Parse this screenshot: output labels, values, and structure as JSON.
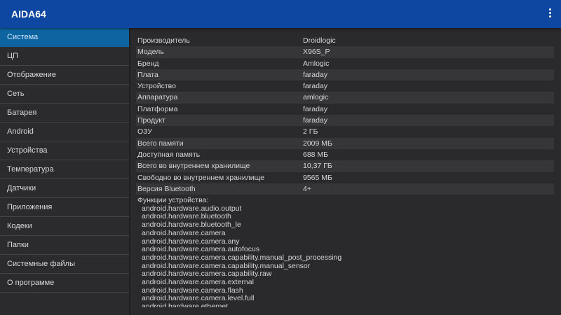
{
  "app": {
    "title": "AIDA64",
    "menu_icon": "more-vert-icon",
    "colors": {
      "appbar": "#0d47a1",
      "selected": "#0e64a0"
    }
  },
  "sidebar": {
    "items": [
      {
        "label": "Система",
        "selected": true
      },
      {
        "label": "ЦП"
      },
      {
        "label": "Отображение"
      },
      {
        "label": "Сеть"
      },
      {
        "label": "Батарея"
      },
      {
        "label": "Android"
      },
      {
        "label": "Устройства"
      },
      {
        "label": "Температура"
      },
      {
        "label": "Датчики"
      },
      {
        "label": "Приложения"
      },
      {
        "label": "Кодеки"
      },
      {
        "label": "Папки"
      },
      {
        "label": "Системные файлы"
      },
      {
        "label": "О программе"
      }
    ]
  },
  "main": {
    "rows": [
      {
        "k": "Производитель",
        "v": "Droidlogic"
      },
      {
        "k": "Модель",
        "v": "X96S_P"
      },
      {
        "k": "Бренд",
        "v": "Amlogic"
      },
      {
        "k": "Плата",
        "v": "faraday"
      },
      {
        "k": "Устройство",
        "v": "faraday"
      },
      {
        "k": "Аппаратура",
        "v": "amlogic"
      },
      {
        "k": "Платформа",
        "v": "faraday"
      },
      {
        "k": "Продукт",
        "v": "faraday"
      },
      {
        "k": "ОЗУ",
        "v": "2 ГБ"
      },
      {
        "k": "Всего памяти",
        "v": "2009 МБ"
      },
      {
        "k": "Доступная память",
        "v": "688 МБ"
      },
      {
        "k": "Всего во внутреннем хранилище",
        "v": "10,37 ГБ"
      },
      {
        "k": "Свободно во внутреннем хранилище",
        "v": "9565 МБ"
      },
      {
        "k": "Версия Bluetooth",
        "v": "4+"
      }
    ],
    "features_label": "Функции устройства:",
    "features": [
      "android.hardware.audio.output",
      "android.hardware.bluetooth",
      "android.hardware.bluetooth_le",
      "android.hardware.camera",
      "android.hardware.camera.any",
      "android.hardware.camera.autofocus",
      "android.hardware.camera.capability.manual_post_processing",
      "android.hardware.camera.capability.manual_sensor",
      "android.hardware.camera.capability.raw",
      "android.hardware.camera.external",
      "android.hardware.camera.flash",
      "android.hardware.camera.level.full",
      "android.hardware.ethernet"
    ]
  }
}
